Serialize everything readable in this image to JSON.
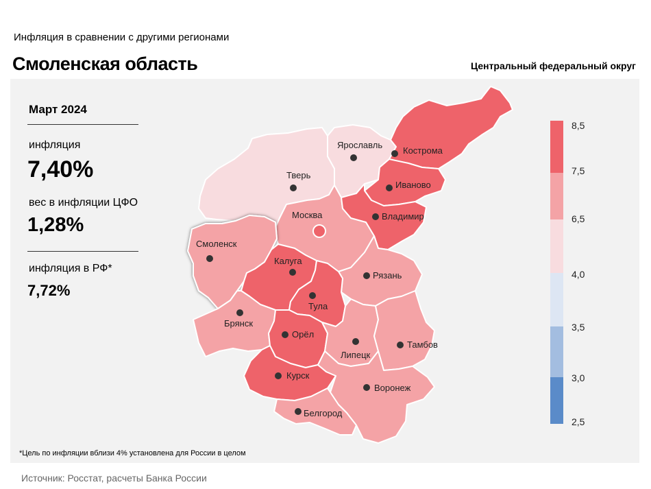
{
  "header": {
    "subtitle": "Инфляция  в сравнении  с другими  регионами",
    "title": "Смоленская область",
    "district": "Центральный федеральный округ"
  },
  "sidebar": {
    "period": "Март 2024",
    "inflation_label": "инфляция",
    "inflation_value": "7,40%",
    "weight_label": "вес в инфляции  ЦФО",
    "weight_value": "1,28%",
    "rf_label": "инфляция  в РФ*",
    "rf_value": "7,72%"
  },
  "footnote": "*Цель по инфляции вблизи 4% установлена для России в целом",
  "source": "Источник: Росстат, расчеты Банка России",
  "legend": {
    "ticks": [
      "8,5",
      "7,5",
      "6,5",
      "4,0",
      "3,5",
      "3,0",
      "2,5"
    ],
    "colors": [
      "#ee636a",
      "#f4a3a6",
      "#f8dcdf",
      "#dde6f3",
      "#a3bde0",
      "#5a8bc9"
    ]
  },
  "regions": [
    {
      "name": "Ярославль",
      "color": "#f8dcdf"
    },
    {
      "name": "Кострома",
      "color": "#ee636a"
    },
    {
      "name": "Тверь",
      "color": "#f8dcdf"
    },
    {
      "name": "Иваново",
      "color": "#ee636a"
    },
    {
      "name": "Москва",
      "color": "#f4a3a6"
    },
    {
      "name": "Владимир",
      "color": "#ee636a"
    },
    {
      "name": "Смоленск",
      "color": "#f4a3a6"
    },
    {
      "name": "Калуга",
      "color": "#ee636a"
    },
    {
      "name": "Рязань",
      "color": "#f4a3a6"
    },
    {
      "name": "Тула",
      "color": "#ee636a"
    },
    {
      "name": "Брянск",
      "color": "#f4a3a6"
    },
    {
      "name": "Орёл",
      "color": "#ee636a"
    },
    {
      "name": "Липецк",
      "color": "#f4a3a6"
    },
    {
      "name": "Тамбов",
      "color": "#f4a3a6"
    },
    {
      "name": "Курск",
      "color": "#ee636a"
    },
    {
      "name": "Воронеж",
      "color": "#f4a3a6"
    },
    {
      "name": "Белгород",
      "color": "#f4a3a6"
    }
  ]
}
